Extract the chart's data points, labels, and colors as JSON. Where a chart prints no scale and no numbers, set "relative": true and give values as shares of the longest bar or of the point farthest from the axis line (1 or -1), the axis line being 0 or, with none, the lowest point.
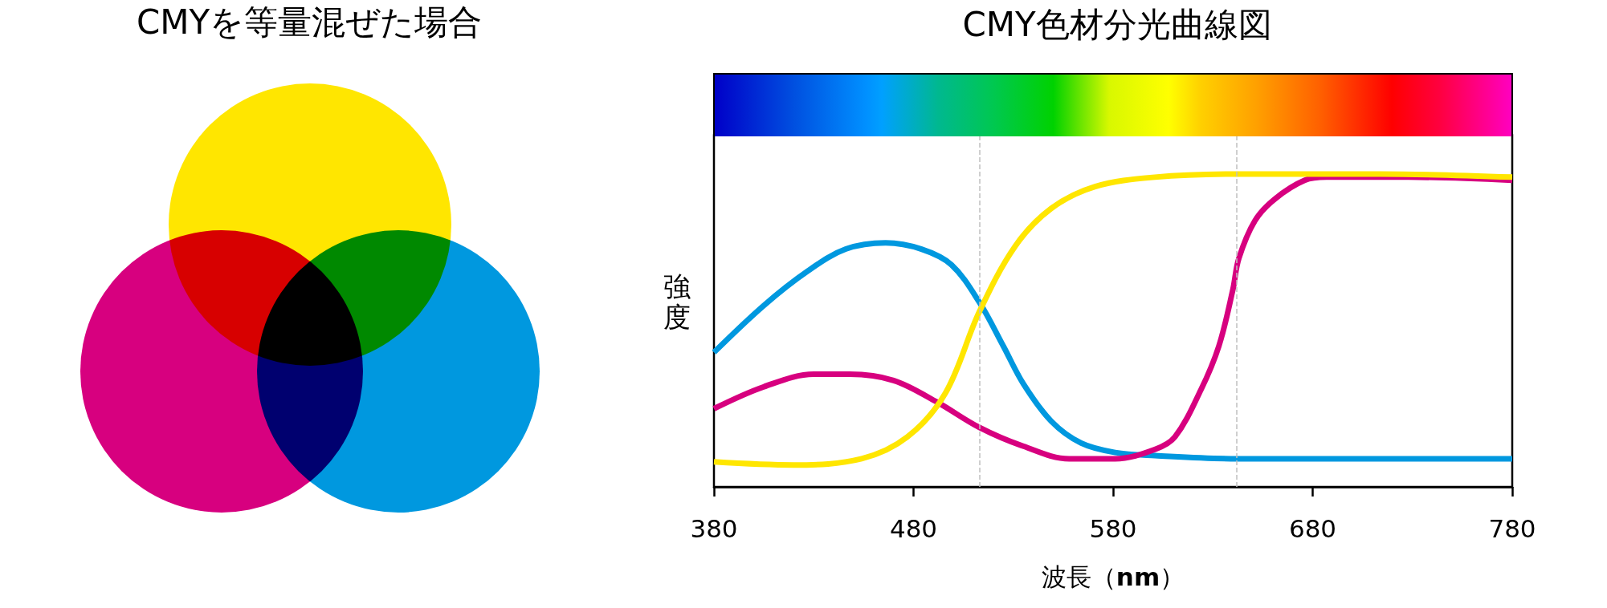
{
  "chart_data": [
    {
      "type": "other",
      "title": "CMYを等量混ぜた場合"
    },
    {
      "type": "line",
      "title": "CMY色材分光曲線図",
      "xlabel": "波長（nm）",
      "ylabel": "強度",
      "relative": true,
      "xlim": [
        380,
        780
      ],
      "xticks": [
        380,
        480,
        580,
        680,
        780
      ],
      "tick_labels": "x",
      "ref_lines": [
        {
          "axis": "x",
          "value": 513,
          "color": "#c0c0c0",
          "line_style": "dashed"
        },
        {
          "axis": "x",
          "value": 642,
          "color": "#c0c0c0",
          "line_style": "dashed"
        }
      ],
      "series": [
        {
          "color": "#0098df",
          "x": [
            380,
            405,
            427,
            446,
            466,
            484,
            499,
            513,
            525,
            535,
            549,
            564,
            581,
            601,
            642,
            714,
            780
          ],
          "values": [
            0.43,
            0.58,
            0.69,
            0.76,
            0.78,
            0.76,
            0.71,
            0.59,
            0.45,
            0.33,
            0.21,
            0.14,
            0.11,
            0.1,
            0.09,
            0.09,
            0.09
          ]
        },
        {
          "color": "#d7007f",
          "x": [
            380,
            405,
            430,
            448,
            470,
            492,
            513,
            535,
            558,
            581,
            601,
            611,
            624,
            633,
            640,
            643,
            651,
            661,
            676,
            687,
            728,
            780
          ],
          "values": [
            0.25,
            0.32,
            0.36,
            0.36,
            0.34,
            0.27,
            0.19,
            0.13,
            0.09,
            0.09,
            0.12,
            0.16,
            0.31,
            0.45,
            0.63,
            0.73,
            0.85,
            0.92,
            0.98,
            0.99,
            0.99,
            0.98
          ]
        },
        {
          "color": "#ffe600",
          "x": [
            380,
            420,
            454,
            477,
            496,
            513,
            531,
            549,
            571,
            601,
            642,
            714,
            780
          ],
          "values": [
            0.08,
            0.07,
            0.09,
            0.16,
            0.3,
            0.56,
            0.77,
            0.89,
            0.96,
            0.99,
            1,
            1,
            0.99
          ]
        }
      ]
    }
  ]
}
